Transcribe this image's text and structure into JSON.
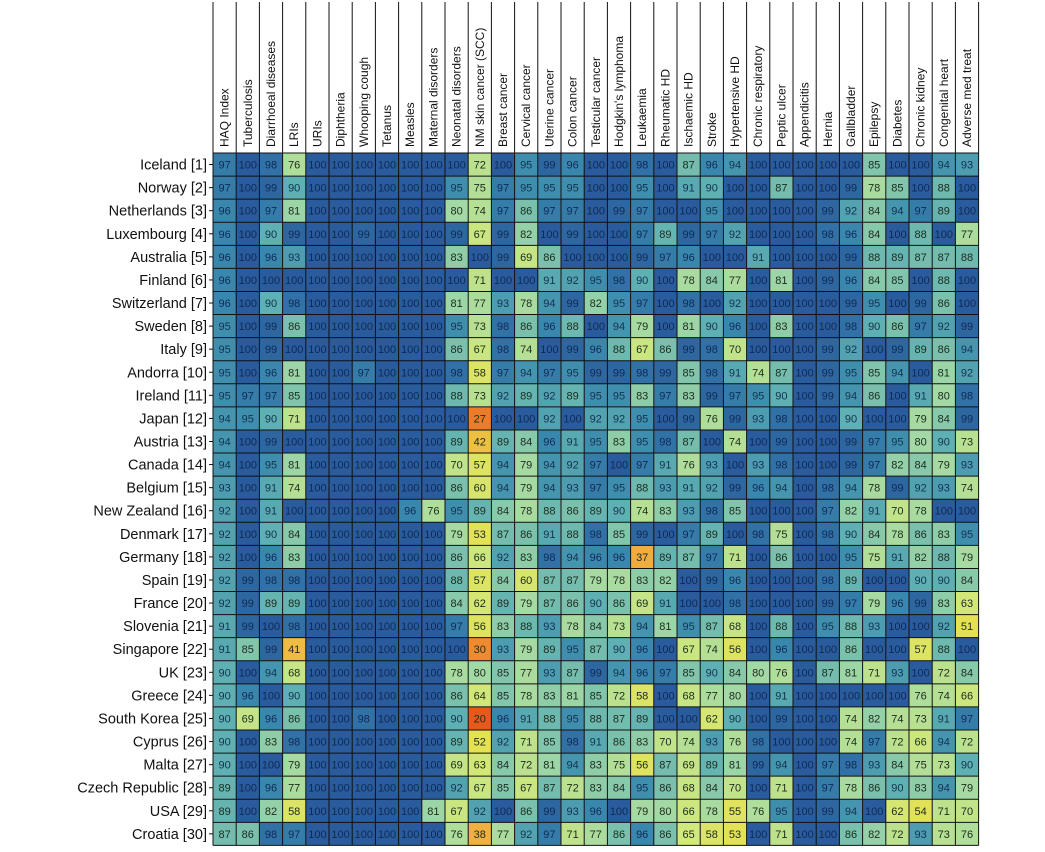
{
  "chart_data": {
    "type": "heatmap",
    "columns": [
      "HAQ Index",
      "Tuberculosis",
      "Diarrhoeal diseases",
      "LRIs",
      "URIs",
      "Diphtheria",
      "Whooping cough",
      "Tetanus",
      "Measles",
      "Maternal disorders",
      "Neonatal disorders",
      "NM skin cancer (SCC)",
      "Breast cancer",
      "Cervical cancer",
      "Uterine cancer",
      "Colon cancer",
      "Testicular cancer",
      "Hodgkin's lymphoma",
      "Leukaemia",
      "Rheumatic HD",
      "Ischaemic HD",
      "Stroke",
      "Hypertensive HD",
      "Chronic respiratory",
      "Peptic ulcer",
      "Appendicitis",
      "Hernia",
      "Gallbladder",
      "Epilepsy",
      "Diabetes",
      "Chronic kidney",
      "Congenital heart",
      "Adverse med treat"
    ],
    "rows": [
      "Iceland [1]",
      "Norway [2]",
      "Netherlands [3]",
      "Luxembourg [4]",
      "Australia [5]",
      "Finland [6]",
      "Switzerland [7]",
      "Sweden [8]",
      "Italy [9]",
      "Andorra [10]",
      "Ireland [11]",
      "Japan [12]",
      "Austria [13]",
      "Canada [14]",
      "Belgium [15]",
      "New Zealand [16]",
      "Denmark [17]",
      "Germany [18]",
      "Spain [19]",
      "France [20]",
      "Slovenia [21]",
      "Singapore [22]",
      "UK [23]",
      "Greece [24]",
      "South Korea [25]",
      "Cyprus [26]",
      "Malta [27]",
      "Czech Republic [28]",
      "USA [29]",
      "Croatia [30]"
    ],
    "values": [
      [
        97,
        100,
        98,
        76,
        100,
        100,
        100,
        100,
        100,
        100,
        100,
        72,
        100,
        95,
        99,
        96,
        100,
        100,
        98,
        100,
        87,
        96,
        94,
        100,
        100,
        100,
        100,
        100,
        85,
        100,
        100,
        94,
        93
      ],
      [
        97,
        100,
        99,
        90,
        100,
        100,
        100,
        100,
        100,
        100,
        95,
        75,
        97,
        95,
        95,
        95,
        100,
        100,
        95,
        100,
        91,
        90,
        100,
        100,
        87,
        100,
        100,
        99,
        78,
        85,
        100,
        88,
        100
      ],
      [
        96,
        100,
        97,
        81,
        100,
        100,
        100,
        100,
        100,
        100,
        80,
        74,
        97,
        86,
        97,
        97,
        100,
        99,
        97,
        100,
        100,
        95,
        100,
        100,
        100,
        100,
        99,
        92,
        84,
        94,
        97,
        89,
        100
      ],
      [
        96,
        100,
        90,
        99,
        100,
        100,
        99,
        100,
        100,
        100,
        99,
        67,
        99,
        82,
        100,
        99,
        100,
        100,
        97,
        89,
        99,
        97,
        92,
        100,
        100,
        100,
        98,
        96,
        84,
        100,
        88,
        100,
        77
      ],
      [
        96,
        100,
        96,
        93,
        100,
        100,
        100,
        100,
        100,
        100,
        83,
        100,
        99,
        69,
        86,
        100,
        100,
        100,
        99,
        97,
        96,
        100,
        100,
        91,
        100,
        100,
        100,
        99,
        88,
        89,
        87,
        87,
        88
      ],
      [
        96,
        100,
        100,
        100,
        100,
        100,
        100,
        100,
        100,
        100,
        100,
        71,
        100,
        100,
        91,
        92,
        95,
        98,
        90,
        100,
        78,
        84,
        77,
        100,
        81,
        100,
        99,
        96,
        84,
        85,
        100,
        88,
        100
      ],
      [
        96,
        100,
        90,
        98,
        100,
        100,
        100,
        100,
        100,
        100,
        81,
        77,
        93,
        78,
        94,
        99,
        82,
        95,
        97,
        100,
        98,
        100,
        92,
        100,
        100,
        100,
        100,
        99,
        95,
        100,
        99,
        86,
        100
      ],
      [
        95,
        100,
        99,
        86,
        100,
        100,
        100,
        100,
        100,
        100,
        95,
        73,
        98,
        86,
        96,
        88,
        100,
        94,
        79,
        100,
        81,
        90,
        96,
        100,
        83,
        100,
        100,
        98,
        90,
        86,
        97,
        92,
        99
      ],
      [
        95,
        100,
        99,
        100,
        100,
        100,
        100,
        100,
        100,
        100,
        86,
        67,
        98,
        74,
        100,
        99,
        96,
        88,
        67,
        86,
        99,
        98,
        70,
        100,
        100,
        100,
        99,
        92,
        100,
        99,
        89,
        86,
        94
      ],
      [
        95,
        100,
        96,
        81,
        100,
        100,
        97,
        100,
        100,
        100,
        98,
        58,
        97,
        94,
        97,
        95,
        99,
        99,
        98,
        99,
        85,
        98,
        91,
        74,
        87,
        100,
        99,
        95,
        85,
        94,
        100,
        81,
        92
      ],
      [
        95,
        97,
        97,
        85,
        100,
        100,
        100,
        100,
        100,
        100,
        88,
        73,
        92,
        89,
        92,
        89,
        95,
        95,
        83,
        97,
        83,
        99,
        97,
        95,
        90,
        100,
        99,
        94,
        86,
        100,
        91,
        80,
        98
      ],
      [
        94,
        95,
        90,
        71,
        100,
        100,
        100,
        100,
        100,
        100,
        100,
        27,
        100,
        100,
        92,
        100,
        92,
        92,
        95,
        100,
        99,
        76,
        99,
        93,
        98,
        100,
        100,
        90,
        100,
        100,
        79,
        84,
        99
      ],
      [
        94,
        100,
        99,
        100,
        100,
        100,
        100,
        100,
        100,
        100,
        89,
        42,
        89,
        84,
        96,
        91,
        95,
        83,
        95,
        98,
        87,
        100,
        74,
        100,
        99,
        100,
        100,
        99,
        97,
        95,
        80,
        90,
        73
      ],
      [
        94,
        100,
        95,
        81,
        100,
        100,
        100,
        100,
        100,
        100,
        70,
        57,
        94,
        79,
        94,
        92,
        97,
        100,
        97,
        91,
        76,
        93,
        100,
        93,
        98,
        100,
        100,
        99,
        97,
        82,
        84,
        79,
        93
      ],
      [
        93,
        100,
        91,
        74,
        100,
        100,
        100,
        100,
        100,
        100,
        86,
        60,
        94,
        79,
        94,
        93,
        97,
        95,
        88,
        93,
        91,
        92,
        99,
        96,
        94,
        100,
        98,
        94,
        78,
        99,
        92,
        93,
        74
      ],
      [
        92,
        100,
        91,
        100,
        100,
        100,
        100,
        100,
        96,
        76,
        95,
        89,
        84,
        78,
        88,
        86,
        89,
        90,
        74,
        83,
        93,
        98,
        85,
        100,
        100,
        100,
        97,
        82,
        91,
        70,
        78,
        100,
        100
      ],
      [
        92,
        100,
        90,
        84,
        100,
        100,
        100,
        100,
        100,
        100,
        79,
        53,
        87,
        86,
        91,
        88,
        98,
        85,
        99,
        100,
        97,
        89,
        100,
        98,
        75,
        100,
        98,
        90,
        84,
        78,
        86,
        83,
        95
      ],
      [
        92,
        100,
        96,
        83,
        100,
        100,
        100,
        100,
        100,
        100,
        86,
        66,
        92,
        83,
        98,
        94,
        96,
        96,
        37,
        89,
        87,
        97,
        71,
        100,
        86,
        100,
        100,
        95,
        75,
        91,
        82,
        88,
        79
      ],
      [
        92,
        99,
        98,
        98,
        100,
        100,
        100,
        100,
        100,
        100,
        88,
        57,
        84,
        60,
        87,
        87,
        79,
        78,
        83,
        82,
        100,
        99,
        96,
        100,
        100,
        100,
        98,
        89,
        100,
        100,
        90,
        90,
        84
      ],
      [
        92,
        99,
        89,
        89,
        100,
        100,
        100,
        100,
        100,
        100,
        84,
        62,
        89,
        79,
        87,
        86,
        90,
        86,
        69,
        91,
        100,
        100,
        98,
        100,
        100,
        100,
        99,
        97,
        79,
        96,
        99,
        83,
        63
      ],
      [
        91,
        99,
        100,
        98,
        100,
        100,
        100,
        100,
        100,
        100,
        97,
        56,
        83,
        88,
        93,
        78,
        84,
        73,
        94,
        81,
        95,
        87,
        68,
        100,
        88,
        100,
        95,
        88,
        93,
        100,
        100,
        92,
        51
      ],
      [
        91,
        85,
        99,
        41,
        100,
        100,
        100,
        100,
        100,
        100,
        100,
        30,
        93,
        79,
        89,
        95,
        87,
        90,
        96,
        100,
        67,
        74,
        56,
        100,
        96,
        100,
        100,
        86,
        100,
        100,
        57,
        88,
        100
      ],
      [
        90,
        100,
        94,
        68,
        100,
        100,
        100,
        100,
        100,
        100,
        78,
        80,
        85,
        77,
        93,
        87,
        99,
        94,
        96,
        97,
        85,
        90,
        84,
        80,
        76,
        100,
        87,
        81,
        71,
        93,
        100,
        72,
        84
      ],
      [
        90,
        96,
        100,
        90,
        100,
        100,
        100,
        100,
        100,
        100,
        86,
        64,
        85,
        78,
        83,
        81,
        85,
        72,
        58,
        100,
        68,
        77,
        80,
        100,
        91,
        100,
        100,
        100,
        100,
        100,
        76,
        74,
        66
      ],
      [
        90,
        69,
        96,
        86,
        100,
        100,
        98,
        100,
        100,
        100,
        90,
        20,
        96,
        91,
        88,
        95,
        88,
        87,
        89,
        100,
        100,
        62,
        90,
        100,
        99,
        100,
        100,
        74,
        82,
        74,
        73,
        91,
        97
      ],
      [
        90,
        100,
        83,
        98,
        100,
        100,
        100,
        100,
        100,
        100,
        89,
        52,
        92,
        71,
        85,
        98,
        91,
        86,
        83,
        70,
        74,
        93,
        76,
        98,
        100,
        100,
        100,
        74,
        97,
        72,
        66,
        94,
        72
      ],
      [
        90,
        100,
        100,
        79,
        100,
        100,
        100,
        100,
        100,
        100,
        69,
        63,
        84,
        72,
        81,
        94,
        83,
        75,
        56,
        87,
        69,
        89,
        81,
        99,
        94,
        100,
        97,
        98,
        93,
        84,
        75,
        73,
        90
      ],
      [
        89,
        100,
        96,
        77,
        100,
        100,
        100,
        100,
        100,
        100,
        92,
        67,
        85,
        67,
        87,
        72,
        83,
        84,
        95,
        86,
        68,
        84,
        70,
        100,
        71,
        100,
        97,
        78,
        86,
        90,
        83,
        94,
        79
      ],
      [
        89,
        100,
        82,
        58,
        100,
        100,
        100,
        100,
        100,
        81,
        67,
        92,
        100,
        86,
        99,
        93,
        96,
        100,
        79,
        80,
        66,
        78,
        55,
        76,
        95,
        100,
        99,
        94,
        100,
        62,
        54,
        71,
        70
      ],
      [
        87,
        86,
        98,
        97,
        100,
        100,
        100,
        100,
        100,
        100,
        76,
        38,
        77,
        92,
        97,
        71,
        77,
        86,
        96,
        86,
        65,
        58,
        53,
        100,
        71,
        100,
        100,
        86,
        82,
        72,
        93,
        73,
        76
      ]
    ],
    "scale": {
      "min": 0,
      "max": 100,
      "stops": [
        {
          "value": 20,
          "color": "#e55a1c"
        },
        {
          "value": 35,
          "color": "#f2a43b"
        },
        {
          "value": 50,
          "color": "#e8e04e"
        },
        {
          "value": 65,
          "color": "#d0e87c"
        },
        {
          "value": 80,
          "color": "#a3d9a5"
        },
        {
          "value": 90,
          "color": "#5fb0b2"
        },
        {
          "value": 96,
          "color": "#3a87ad"
        },
        {
          "value": 100,
          "color": "#2a5b9c"
        }
      ]
    },
    "grid": true,
    "legend": "none"
  }
}
